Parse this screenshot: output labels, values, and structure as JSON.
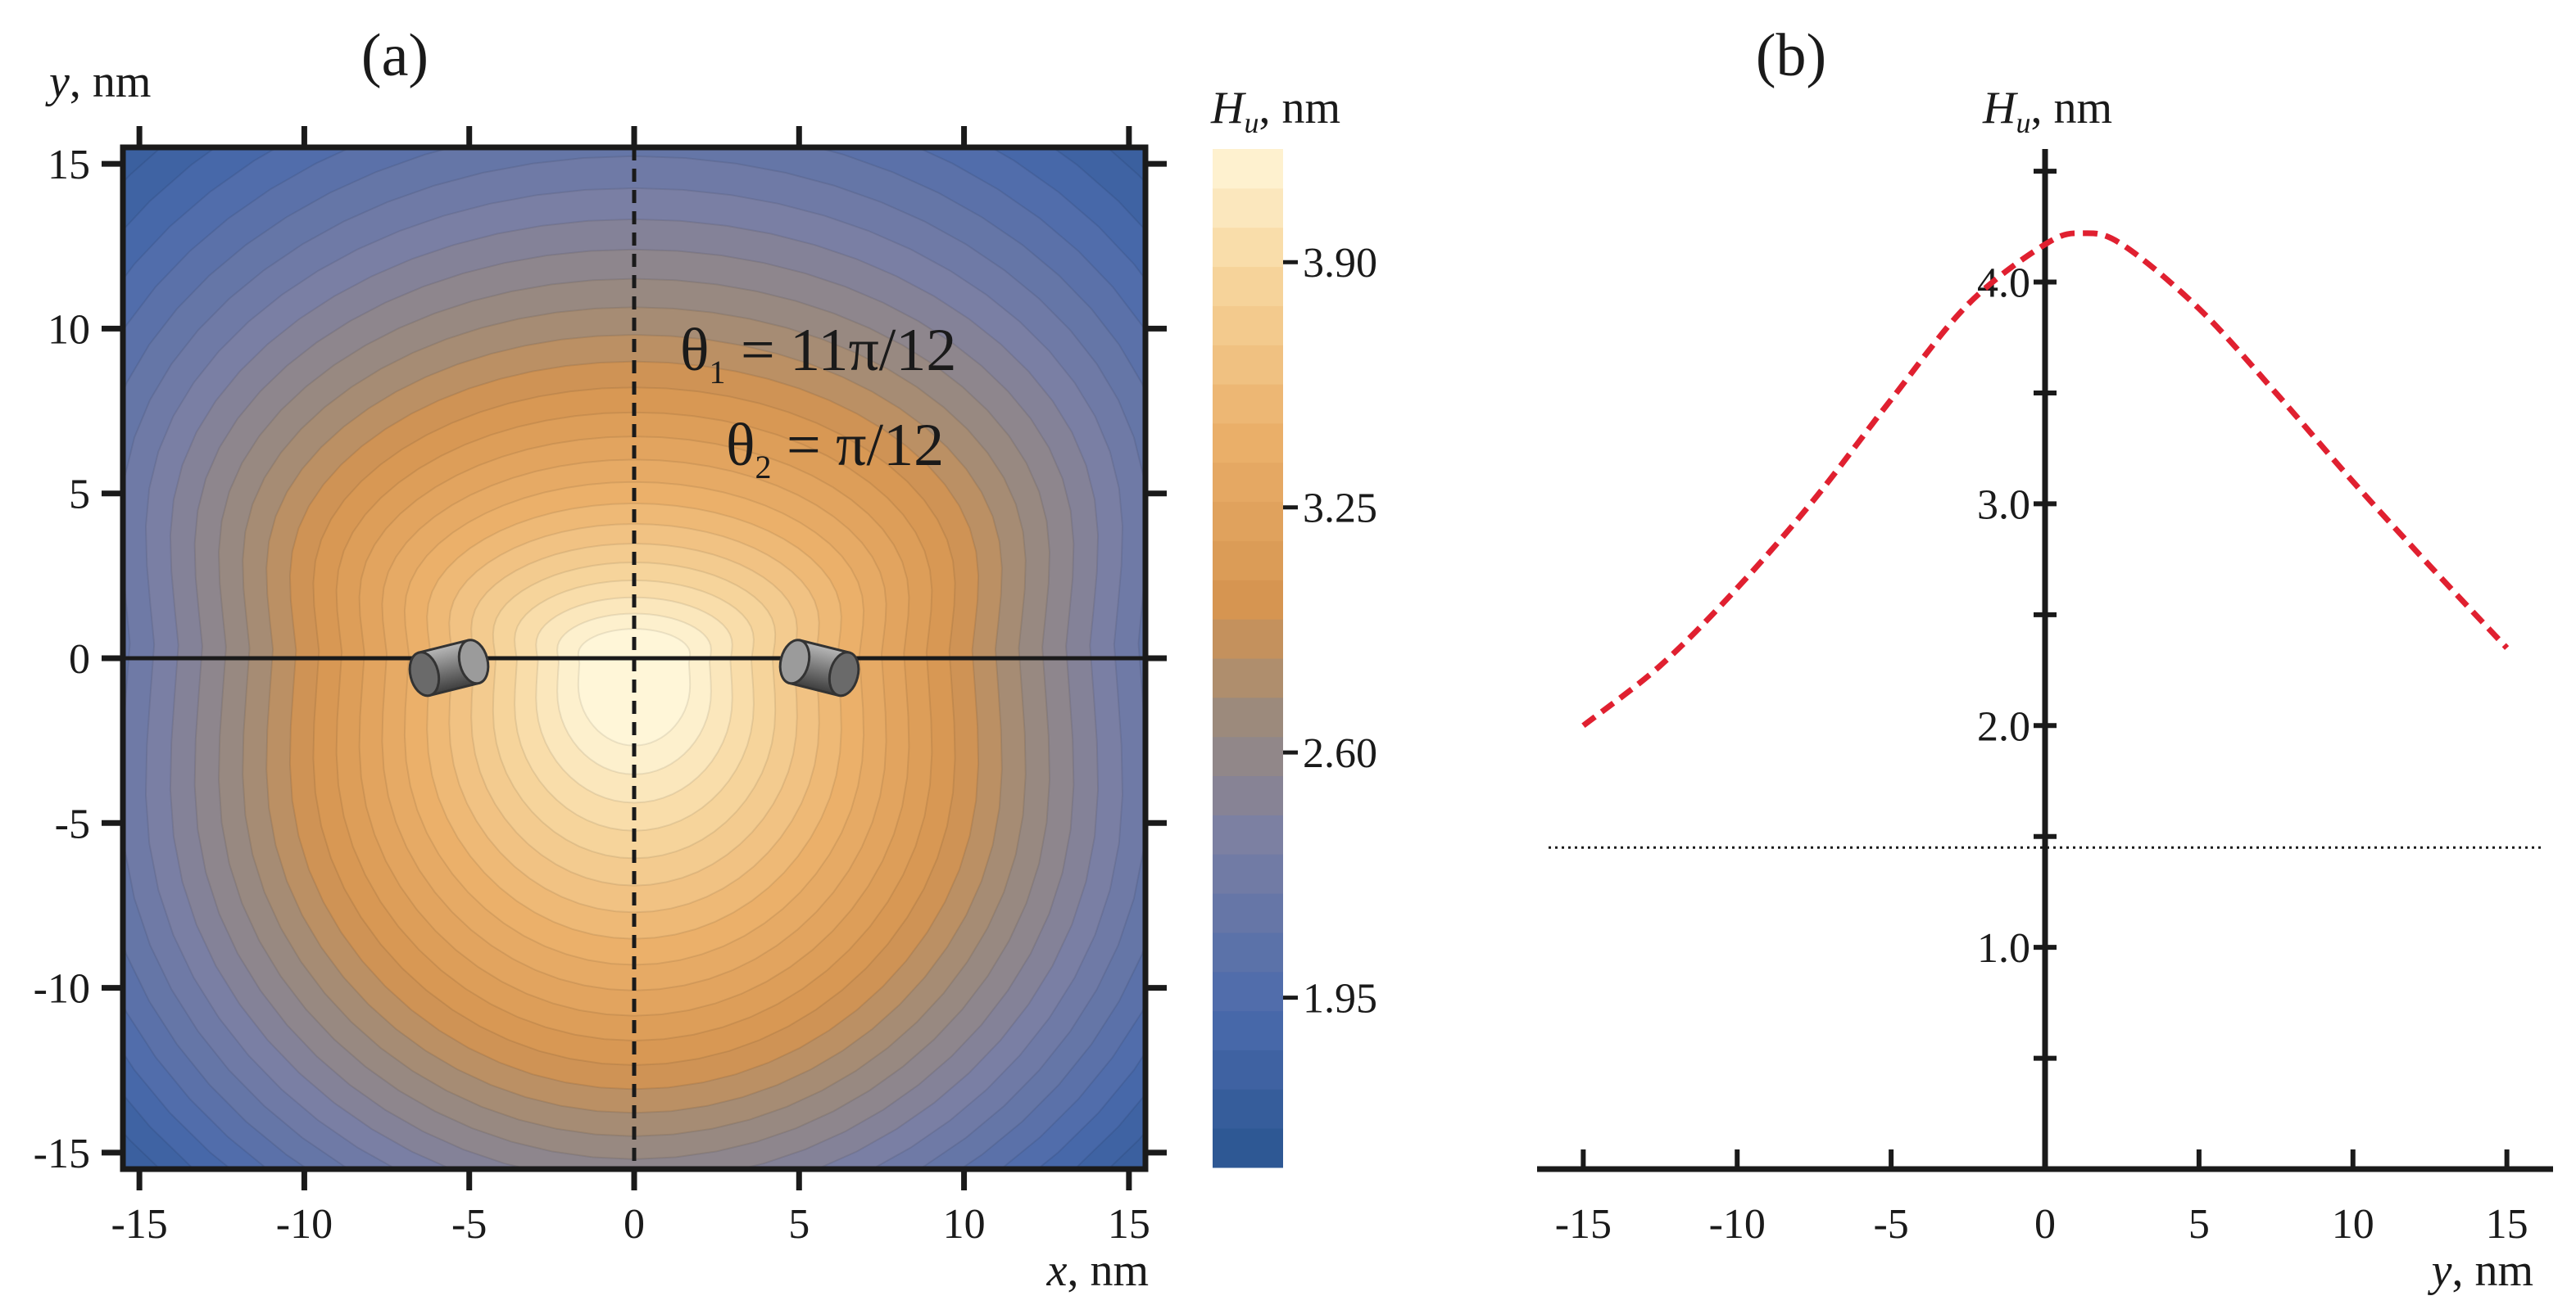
{
  "panels": {
    "a": "(a)",
    "b": "(b)"
  },
  "annotation": {
    "theta1_sym": "θ",
    "theta1_sub": "1",
    "theta1_val": " = 11π/12",
    "theta2_sym": "θ",
    "theta2_sub": "2",
    "theta2_val": " = π/12"
  },
  "colorbar": {
    "title_main": "H",
    "title_sub": "u",
    "title_unit": ", nm",
    "labels": [
      "3.90",
      "3.25",
      "2.60",
      "1.95"
    ],
    "colors": {
      "low": "#2a5590",
      "mid_low": "#6f78a6",
      "mid": "#e3a45c",
      "high": "#fff4cf"
    }
  },
  "chart_data": [
    {
      "type": "heatmap",
      "panel": "(a)",
      "xlabel_var": "x",
      "xlabel_unit": ", nm",
      "ylabel_var": "y",
      "ylabel_unit": ", nm",
      "xlim": [
        -15.5,
        15.5
      ],
      "ylim": [
        -15.5,
        15.5
      ],
      "xticks": [
        -15,
        -10,
        -5,
        0,
        5,
        10,
        15
      ],
      "yticks": [
        15,
        10,
        5,
        0,
        -5,
        -10,
        -15
      ],
      "colorbar_ticks": [
        3.9,
        3.25,
        2.6,
        1.95
      ],
      "value_range": [
        1.5,
        4.2
      ],
      "cylinders": [
        {
          "x": -5.7,
          "y": 0
        },
        {
          "x": 5.7,
          "y": 0
        }
      ],
      "lines": {
        "horizontal_solid_y": 0,
        "vertical_dashed_x": 0
      }
    },
    {
      "type": "line",
      "panel": "(b)",
      "xlabel_var": "y",
      "xlabel_unit": ", nm",
      "ylabel_main": "H",
      "ylabel_sub": "u",
      "ylabel_unit": ", nm",
      "xlim": [
        -16.5,
        16.5
      ],
      "ylim": [
        0,
        4.6
      ],
      "xticks": [
        -15,
        -10,
        -5,
        0,
        5,
        10,
        15
      ],
      "yticks": [
        1.0,
        2.0,
        3.0,
        4.0
      ],
      "ytick_labels": [
        "1.0",
        "2.0",
        "3.0",
        "4.0"
      ],
      "series": [
        {
          "style": "dashed",
          "color": "#e02030",
          "x": [
            -15,
            -12.5,
            -10,
            -7.5,
            -5,
            -2.5,
            0,
            1.2,
            2.5,
            5,
            7.5,
            10,
            12.5,
            15
          ],
          "y": [
            2.0,
            2.27,
            2.62,
            3.02,
            3.47,
            3.9,
            4.17,
            4.22,
            4.17,
            3.88,
            3.5,
            3.1,
            2.72,
            2.35
          ]
        }
      ],
      "reference_line": {
        "y": 1.45,
        "style": "dotted"
      }
    }
  ]
}
